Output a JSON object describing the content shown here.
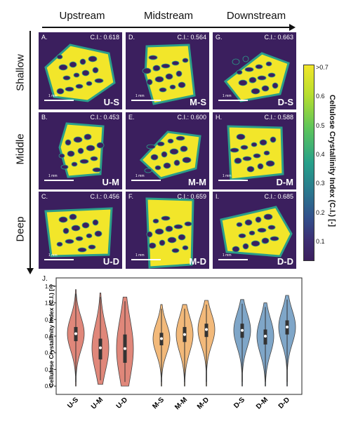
{
  "columns": [
    "Upstream",
    "Midstream",
    "Downstream"
  ],
  "rows": [
    "Shallow",
    "Middle",
    "Deep"
  ],
  "panels": [
    {
      "letter": "A.",
      "ci_text": "C.I.: 0.618",
      "tag": "U-S",
      "scale": "1 mm"
    },
    {
      "letter": "D.",
      "ci_text": "C.I.: 0.564",
      "tag": "M-S",
      "scale": "1 mm"
    },
    {
      "letter": "G.",
      "ci_text": "C.I.: 0.663",
      "tag": "D-S",
      "scale": "1 mm"
    },
    {
      "letter": "B.",
      "ci_text": "C.I.: 0.453",
      "tag": "U-M",
      "scale": "1 mm"
    },
    {
      "letter": "E.",
      "ci_text": "C.I.: 0.600",
      "tag": "M-M",
      "scale": "1 mm"
    },
    {
      "letter": "H.",
      "ci_text": "C.I.: 0.588",
      "tag": "D-M",
      "scale": "1 mm"
    },
    {
      "letter": "C.",
      "ci_text": "C.I.: 0.456",
      "tag": "U-D",
      "scale": "1 mm"
    },
    {
      "letter": "F.",
      "ci_text": "C.I.: 0.659",
      "tag": "M-D",
      "scale": "1 mm"
    },
    {
      "letter": "I.",
      "ci_text": "C.I.: 0.685",
      "tag": "D-D",
      "scale": "1 mm"
    }
  ],
  "colorbar": {
    "title": "Cellulose Crystallinity Index (C.I.) [-]",
    "ticks": [
      ">0.7",
      "0.6",
      "0.5",
      "0.4",
      "0.3",
      "0.2",
      "0.1"
    ]
  },
  "violin_panel_label": "J.",
  "colors": {
    "upstream": "#e0877a",
    "midstream": "#f2b97a",
    "downstream": "#7fa6c8",
    "background": "#3b1f5e",
    "high": "#f2e62a",
    "mid": "#2b9e8a"
  },
  "chart_data": {
    "type": "violin",
    "ylabel": "Cellulose Crystallinity Index (C.I.) [-]",
    "xlabel": "",
    "ylim": [
      -0.1,
      1.3
    ],
    "yticks": [
      0.0,
      0.2,
      0.4,
      0.6,
      0.8,
      1.0,
      1.2
    ],
    "ytick_labels": [
      "0.0",
      "0.2",
      "0.4",
      "0.6",
      "0.8",
      "1.0",
      "1.2"
    ],
    "categories": [
      "U-S",
      "U-M",
      "U-D",
      "M-S",
      "M-M",
      "M-D",
      "D-S",
      "D-M",
      "D-D"
    ],
    "groups": [
      "upstream",
      "upstream",
      "upstream",
      "midstream",
      "midstream",
      "midstream",
      "downstream",
      "downstream",
      "downstream"
    ],
    "medians": [
      0.63,
      0.46,
      0.45,
      0.57,
      0.62,
      0.68,
      0.67,
      0.6,
      0.71
    ],
    "q1": [
      0.54,
      0.32,
      0.28,
      0.49,
      0.53,
      0.59,
      0.58,
      0.5,
      0.62
    ],
    "q3": [
      0.71,
      0.57,
      0.62,
      0.64,
      0.71,
      0.75,
      0.75,
      0.68,
      0.79
    ],
    "min": [
      0.0,
      0.02,
      0.0,
      0.0,
      0.0,
      0.0,
      0.0,
      0.0,
      0.0
    ],
    "max": [
      1.16,
      1.12,
      1.07,
      0.98,
      0.98,
      1.03,
      1.04,
      1.0,
      1.09
    ]
  }
}
